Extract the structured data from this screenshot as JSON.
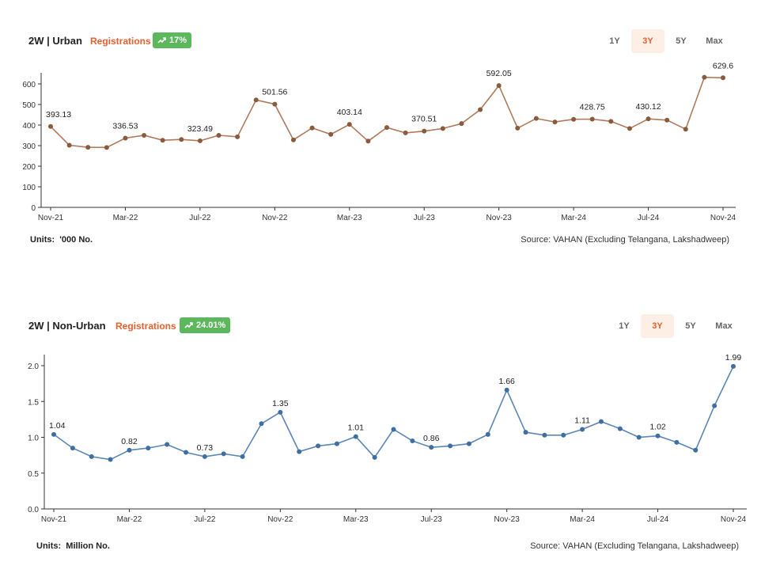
{
  "panels": [
    {
      "title": "2W | Urban",
      "metric_label": "Registrations",
      "badge": "17%",
      "tabs": [
        "1Y",
        "3Y",
        "5Y",
        "Max"
      ],
      "active_tab": "3Y",
      "units_label": "Units:",
      "units_value": "'000 No.",
      "source": "Source: VAHAN (Excluding Telangana, Lakshadweep)"
    },
    {
      "title": "2W | Non-Urban",
      "metric_label": "Registrations",
      "badge": "24.01%",
      "tabs": [
        "1Y",
        "3Y",
        "5Y",
        "Max"
      ],
      "active_tab": "3Y",
      "units_label": "Units:",
      "units_value": "Million No.",
      "source": "Source: VAHAN (Excluding Telangana, Lakshadweep)"
    }
  ],
  "colors": {
    "accent_orange": "#e8602c",
    "badge_green": "#5cb85c",
    "urban_line": "#b07a5a",
    "urban_marker": "#8a5a3c",
    "nonurban_line": "#5b87b8",
    "nonurban_marker": "#3f6ea3",
    "axis": "#333333"
  },
  "chart_data": [
    {
      "type": "line",
      "x_tick_labels": [
        "Nov-21",
        "Mar-22",
        "Jul-22",
        "Nov-22",
        "Mar-23",
        "Jul-23",
        "Nov-23",
        "Mar-24",
        "Jul-24",
        "Nov-24"
      ],
      "ylim": [
        0,
        600
      ],
      "yticks": [
        0,
        100,
        200,
        300,
        400,
        500,
        600
      ],
      "grid": false,
      "series": [
        {
          "values": [
            393.13,
            302,
            292,
            291,
            336.53,
            350,
            326,
            330,
            323.49,
            350,
            343,
            522,
            501.56,
            328,
            386,
            355,
            403.14,
            322,
            388,
            362,
            370.51,
            383,
            407,
            475,
            592.05,
            385,
            432,
            415,
            428,
            428.75,
            418,
            383,
            430.12,
            424,
            380,
            632,
            629.6
          ]
        }
      ],
      "data_labels": [
        {
          "index": 0,
          "text": "393.13"
        },
        {
          "index": 4,
          "text": "336.53"
        },
        {
          "index": 8,
          "text": "323.49"
        },
        {
          "index": 12,
          "text": "501.56"
        },
        {
          "index": 16,
          "text": "403.14"
        },
        {
          "index": 20,
          "text": "370.51"
        },
        {
          "index": 24,
          "text": "592.05"
        },
        {
          "index": 29,
          "text": "428.75"
        },
        {
          "index": 32,
          "text": "430.12"
        },
        {
          "index": 36,
          "text": "629.6"
        }
      ]
    },
    {
      "type": "line",
      "x_tick_labels": [
        "Nov-21",
        "Mar-22",
        "Jul-22",
        "Nov-22",
        "Mar-23",
        "Jul-23",
        "Nov-23",
        "Mar-24",
        "Jul-24",
        "Nov-24"
      ],
      "ylim": [
        0,
        2.0
      ],
      "yticks": [
        "0.0",
        "0.5",
        "1.0",
        "1.5",
        "2.0"
      ],
      "grid": false,
      "series": [
        {
          "values": [
            1.04,
            0.85,
            0.73,
            0.69,
            0.82,
            0.85,
            0.9,
            0.79,
            0.73,
            0.77,
            0.73,
            1.19,
            1.35,
            0.8,
            0.88,
            0.91,
            1.01,
            0.72,
            1.11,
            0.95,
            0.86,
            0.88,
            0.91,
            1.04,
            1.66,
            1.07,
            1.03,
            1.03,
            1.11,
            1.22,
            1.12,
            1.0,
            1.02,
            0.93,
            0.82,
            1.44,
            1.99
          ]
        }
      ],
      "data_labels": [
        {
          "index": 0,
          "text": "1.04"
        },
        {
          "index": 4,
          "text": "0.82"
        },
        {
          "index": 8,
          "text": "0.73"
        },
        {
          "index": 12,
          "text": "1.35"
        },
        {
          "index": 16,
          "text": "1.01"
        },
        {
          "index": 20,
          "text": "0.86"
        },
        {
          "index": 24,
          "text": "1.66"
        },
        {
          "index": 28,
          "text": "1.11"
        },
        {
          "index": 32,
          "text": "1.02"
        },
        {
          "index": 36,
          "text": "1.99"
        }
      ]
    }
  ]
}
